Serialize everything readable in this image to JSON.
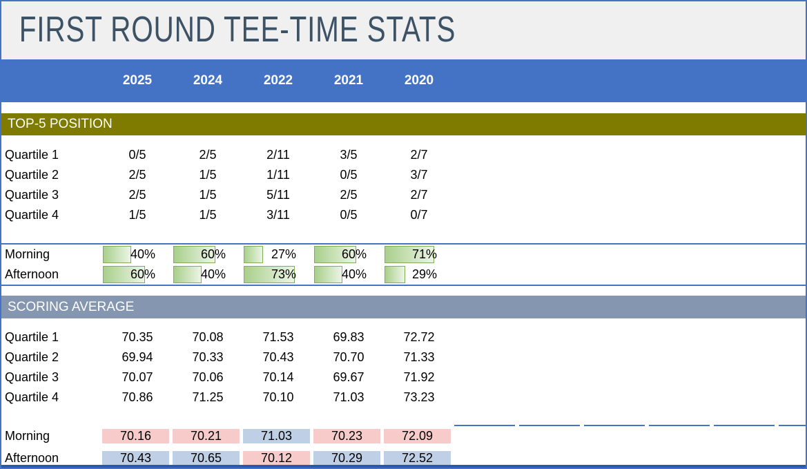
{
  "title": {
    "text": "FIRST ROUND TEE-TIME STATS"
  },
  "years": {
    "items": [
      "2025",
      "2024",
      "2022",
      "2021",
      "2020"
    ]
  },
  "top5": {
    "header": "TOP-5 POSITION",
    "quartiles": [
      {
        "label": "Quartile 1",
        "values": [
          "0/5",
          "2/5",
          "2/11",
          "3/5",
          "2/7"
        ]
      },
      {
        "label": "Quartile 2",
        "values": [
          "2/5",
          "1/5",
          "1/11",
          "0/5",
          "3/7"
        ]
      },
      {
        "label": "Quartile 3",
        "values": [
          "2/5",
          "1/5",
          "5/11",
          "2/5",
          "2/7"
        ]
      },
      {
        "label": "Quartile 4",
        "values": [
          "1/5",
          "1/5",
          "3/11",
          "0/5",
          "0/7"
        ]
      }
    ],
    "tee_time_share": [
      {
        "label": "Morning",
        "cells": [
          {
            "display": "40%",
            "pct": 40
          },
          {
            "display": "60%",
            "pct": 60
          },
          {
            "display": "27%",
            "pct": 27
          },
          {
            "display": "60%",
            "pct": 60
          },
          {
            "display": "71%",
            "pct": 71
          }
        ]
      },
      {
        "label": "Afternoon",
        "cells": [
          {
            "display": "60%",
            "pct": 60
          },
          {
            "display": "40%",
            "pct": 40
          },
          {
            "display": "73%",
            "pct": 73
          },
          {
            "display": "40%",
            "pct": 40
          },
          {
            "display": "29%",
            "pct": 29
          }
        ]
      }
    ]
  },
  "scoring": {
    "header": "SCORING AVERAGE",
    "quartiles": [
      {
        "label": "Quartile 1",
        "values": [
          "70.35",
          "70.08",
          "71.53",
          "69.83",
          "72.72"
        ]
      },
      {
        "label": "Quartile 2",
        "values": [
          "69.94",
          "70.33",
          "70.43",
          "70.70",
          "71.33"
        ]
      },
      {
        "label": "Quartile 3",
        "values": [
          "70.07",
          "70.06",
          "70.14",
          "69.67",
          "71.92"
        ]
      },
      {
        "label": "Quartile 4",
        "values": [
          "70.86",
          "71.25",
          "70.10",
          "71.03",
          "73.23"
        ]
      }
    ],
    "tee_time_avg": [
      {
        "label": "Morning",
        "cells": [
          {
            "value": "70.16",
            "tone": "pink"
          },
          {
            "value": "70.21",
            "tone": "pink"
          },
          {
            "value": "71.03",
            "tone": "blue"
          },
          {
            "value": "70.23",
            "tone": "pink"
          },
          {
            "value": "72.09",
            "tone": "pink"
          }
        ]
      },
      {
        "label": "Afternoon",
        "cells": [
          {
            "value": "70.43",
            "tone": "blue"
          },
          {
            "value": "70.65",
            "tone": "blue"
          },
          {
            "value": "70.12",
            "tone": "pink"
          },
          {
            "value": "70.29",
            "tone": "blue"
          },
          {
            "value": "72.52",
            "tone": "blue"
          }
        ]
      }
    ],
    "tone_colors": {
      "pink": "#F8CBCB",
      "blue": "#BFCFE6"
    }
  },
  "colors": {
    "accent_blue": "#4472C4",
    "olive": "#7E7B00",
    "slate_band": "#8496B0",
    "title_bg": "#F0F0F0",
    "title_text": "#3E5266",
    "bottom_bar": "#2D57A7",
    "bar_fill": "#A9CF8C",
    "bar_fill_light": "#ECF5E5",
    "bar_border": "#7FAE58"
  }
}
